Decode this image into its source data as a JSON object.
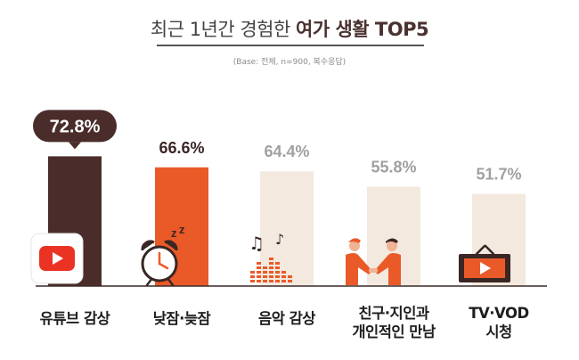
{
  "title": {
    "prefix": "최근 1년간 경험한",
    "emphasis": "여가 생활 TOP5"
  },
  "note": "(Base: 전체, n=900, 복수응답)",
  "colors": {
    "top": "#4a2d2b",
    "second": "#ea5a28",
    "rest": "#f4e9df",
    "highlight_text": "#3a2624",
    "rest_text": "#a0a0a0"
  },
  "chart_data": {
    "type": "bar",
    "categories": [
      "유튜브 감상",
      "낮잠·늦잠",
      "음악 감상",
      "친구·지인과\n개인적인 만남",
      "TV·VOD\n시청"
    ],
    "values": [
      72.8,
      66.6,
      64.4,
      55.8,
      51.7
    ],
    "value_labels": [
      "72.8%",
      "66.6%",
      "64.4%",
      "55.8%",
      "51.7%"
    ],
    "icons": [
      "youtube-icon",
      "alarm-clock-icon",
      "music-notes-icon",
      "handshake-icon",
      "tv-play-icon"
    ],
    "title": "최근 1년간 경험한 여가 생활 TOP5",
    "xlabel": "",
    "ylabel": "",
    "ylim": [
      0,
      100
    ],
    "grid": false,
    "legend": "none"
  }
}
